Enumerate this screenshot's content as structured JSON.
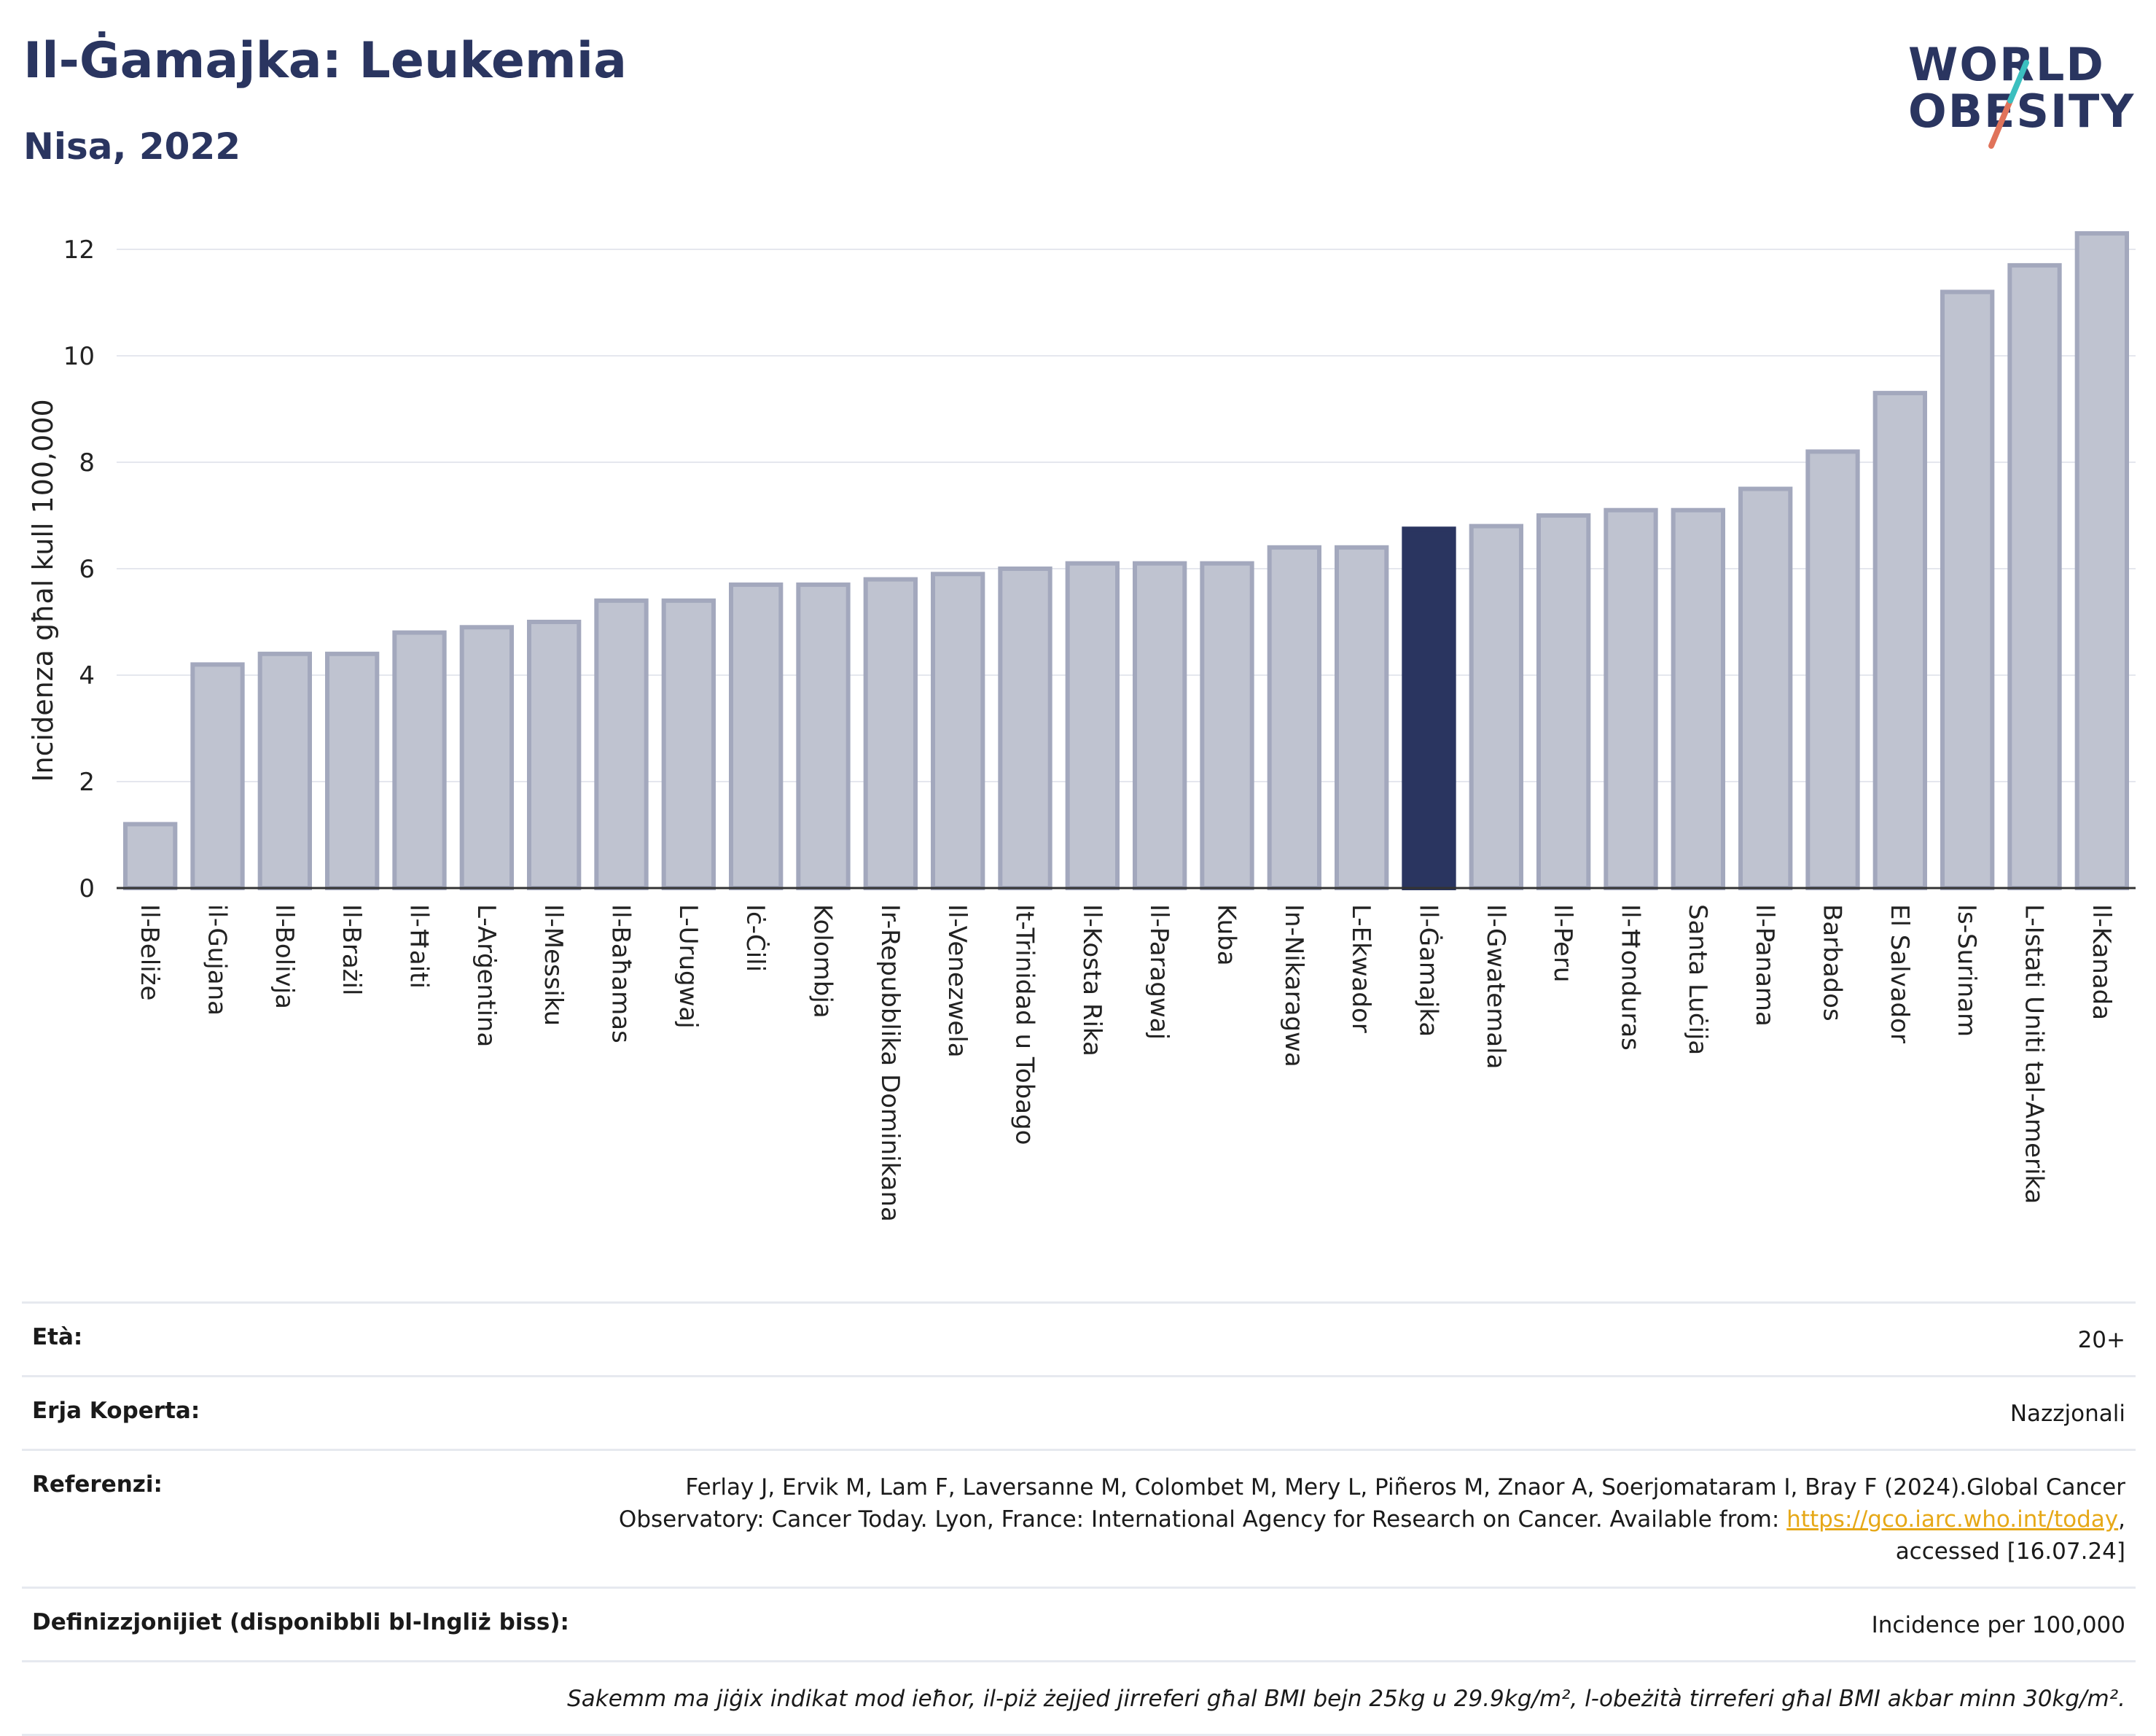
{
  "header": {
    "title": "Il-Ġamajka: Leukemia",
    "subtitle": "Nisa, 2022"
  },
  "logo": {
    "line1": "WORLD",
    "line2": "OBESITY"
  },
  "colors": {
    "highlight": "#2a3560",
    "bar": "#bfc3d0",
    "bar_edge": "#a3a8bd",
    "grid": "#e5e7ee",
    "accent_teal": "#3bbfbf",
    "accent_red": "#e0735a"
  },
  "chart_data": {
    "type": "bar",
    "ylabel": "Incidenza għal kull 100,000",
    "xlabel": "",
    "ylim": [
      0,
      12.6
    ],
    "yticks": [
      0,
      2,
      4,
      6,
      8,
      10,
      12
    ],
    "grid": true,
    "highlight": "Il-Ġamajka",
    "categories": [
      "Il-Beliże",
      "il-Gujana",
      "Il-Bolivja",
      "Il-Brażil",
      "Il-Ħaiti",
      "L-Arġentina",
      "Il-Messiku",
      "Il-Baħamas",
      "L-Urugwaj",
      "Iċ-Ċili",
      "Kolombja",
      "Ir-Repubblika Dominikana",
      "Il-Venezwela",
      "It-Trinidad u Tobago",
      "Il-Kosta Rika",
      "Il-Paragwaj",
      "Kuba",
      "In-Nikaragwa",
      "L-Ekwador",
      "Il-Ġamajka",
      "Il-Gwatemala",
      "Il-Peru",
      "Il-Ħonduras",
      "Santa Luċija",
      "Il-Panama",
      "Barbados",
      "El Salvador",
      "Is-Surinam",
      "L-Istati Uniti tal-Amerika",
      "Il-Kanada"
    ],
    "values": [
      1.2,
      4.2,
      4.4,
      4.4,
      4.8,
      4.9,
      5.0,
      5.4,
      5.4,
      5.7,
      5.7,
      5.8,
      5.9,
      6.0,
      6.1,
      6.1,
      6.1,
      6.4,
      6.4,
      6.75,
      6.8,
      7.0,
      7.1,
      7.1,
      7.5,
      8.2,
      9.3,
      11.2,
      11.7,
      12.3
    ]
  },
  "meta": {
    "age_label": "Età:",
    "age_value": "20+",
    "coverage_label": "Erja Koperta:",
    "coverage_value": "Nazzjonali",
    "references_label": "Referenzi:",
    "references_line1": "Ferlay J, Ervik M, Lam F, Laversanne M, Colombet M, Mery L, Piñeros M, Znaor A, Soerjomataram I, Bray F (2024).Global Cancer",
    "references_line2": "Observatory: Cancer Today. Lyon, France: International Agency for Research on Cancer. Available from: ",
    "references_link": "https://gco.iarc.who.int/today",
    "references_line2_end": ",",
    "references_line3": "accessed [16.07.24]",
    "definitions_label": "Definizzjonijiet (disponibbli bl-Ingliż biss):",
    "definitions_value": "Incidence per 100,000",
    "note": "Sakemm ma jiġix indikat mod ieħor, il-piż żejjed jirreferi għal BMI bejn 25kg u 29.9kg/m², l-obeżità tirreferi għal BMI akbar minn 30kg/m²."
  }
}
